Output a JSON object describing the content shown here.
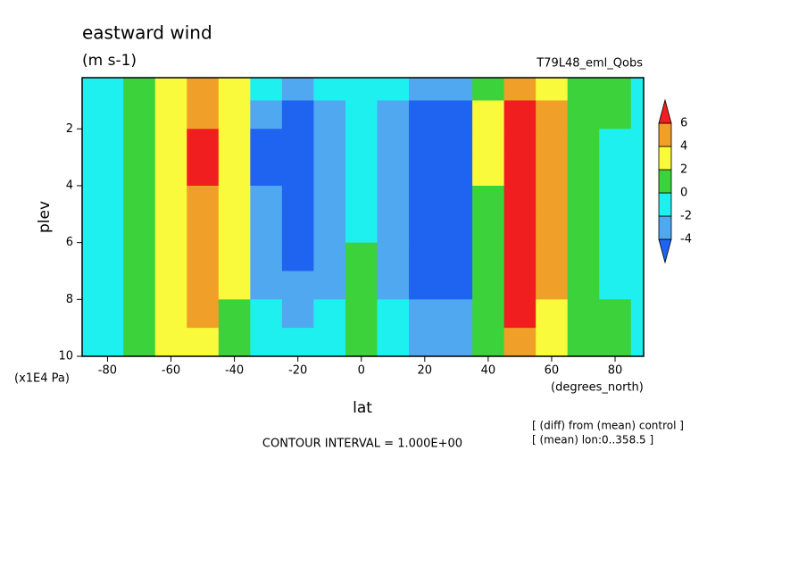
{
  "chart_data": {
    "type": "contour",
    "title": "eastward wind",
    "subtitle": "(m s-1)",
    "run_label": "T79L48_eml_Qobs",
    "x_label": "lat",
    "x_units": "(degrees_north)",
    "y_label": "plev",
    "y_units": "(x1E4 Pa)",
    "contour_interval": "CONTOUR INTERVAL = 1.000E+00",
    "notes": [
      "[ (diff) from (mean) control ]",
      "[ (mean) lon:0..358.5 ]"
    ],
    "x": [
      -90,
      -80,
      -70,
      -60,
      -50,
      -40,
      -30,
      -20,
      -10,
      0,
      10,
      20,
      30,
      40,
      50,
      60,
      70,
      80,
      90
    ],
    "y": [
      0.5,
      1.5,
      2.5,
      3.5,
      4.5,
      5.5,
      6.5,
      7.5,
      8.5,
      9.5
    ],
    "z": [
      [
        -1,
        -0.5,
        1,
        3,
        4,
        2,
        -2,
        -3,
        -2,
        -1,
        -2,
        -3,
        -3,
        1,
        5,
        3,
        1,
        0.5,
        -0.5
      ],
      [
        -1,
        -1,
        0.5,
        3,
        5.5,
        2.5,
        -4,
        -4.5,
        -2.5,
        -1,
        -2.5,
        -4.5,
        -5,
        2,
        7.5,
        4,
        1,
        0.5,
        -0.5
      ],
      [
        -1,
        -1.5,
        0.5,
        3.5,
        6.5,
        2.5,
        -4.5,
        -5,
        -3,
        -1,
        -3,
        -5,
        -6,
        2,
        9,
        4.5,
        1,
        -0.5,
        -1
      ],
      [
        -1,
        -1,
        0.5,
        3.5,
        6,
        2,
        -4.5,
        -5,
        -3,
        -1,
        -3,
        -5,
        -6,
        2,
        8.5,
        4.5,
        1,
        -0.5,
        -1
      ],
      [
        -1,
        -1,
        0.5,
        3,
        5.5,
        2,
        -4,
        -5,
        -3,
        -1,
        -3,
        -5,
        -6,
        1.5,
        8,
        4,
        1,
        -0.5,
        -1
      ],
      [
        -1,
        -1,
        0.5,
        3,
        5,
        2,
        -3.5,
        -4.5,
        -3,
        -1,
        -3,
        -4.5,
        -5.5,
        1.5,
        7.5,
        4,
        1,
        -0.5,
        -1
      ],
      [
        -1,
        -1,
        0.5,
        3,
        5,
        2,
        -3,
        -4.5,
        -3,
        0.5,
        -3,
        -4.5,
        -5,
        1.5,
        7,
        4,
        1,
        -0.5,
        -1
      ],
      [
        -1,
        -1,
        0.5,
        2.5,
        5,
        2,
        -2.5,
        -4,
        -2.5,
        1,
        -2.5,
        -4.5,
        -4.5,
        1,
        6.5,
        4,
        1,
        -0.5,
        -1
      ],
      [
        -1,
        -1,
        0.5,
        2.5,
        4.5,
        1.5,
        -2,
        -3,
        -2,
        1,
        -2,
        -4,
        -4,
        1,
        6,
        3.5,
        1,
        0,
        -0.5
      ],
      [
        -1,
        -1,
        0.5,
        2,
        3,
        1,
        -1,
        -2,
        -1.5,
        0.5,
        -1.5,
        -3,
        -3,
        0.5,
        4,
        2.5,
        0.5,
        0,
        -0.5
      ]
    ],
    "levels": [
      -4,
      -2,
      0,
      2,
      4,
      6
    ],
    "colors": [
      "#1e64f0",
      "#50a8f0",
      "#1ef0f0",
      "#3cd23c",
      "#fafa3c",
      "#f0a028",
      "#f01e1e"
    ],
    "xlim": [
      -88,
      89
    ],
    "ylim": [
      10,
      0.2
    ],
    "xticks": [
      -80,
      -60,
      -40,
      -20,
      0,
      20,
      40,
      60,
      80
    ],
    "yticks": [
      2,
      4,
      6,
      8,
      10
    ]
  }
}
